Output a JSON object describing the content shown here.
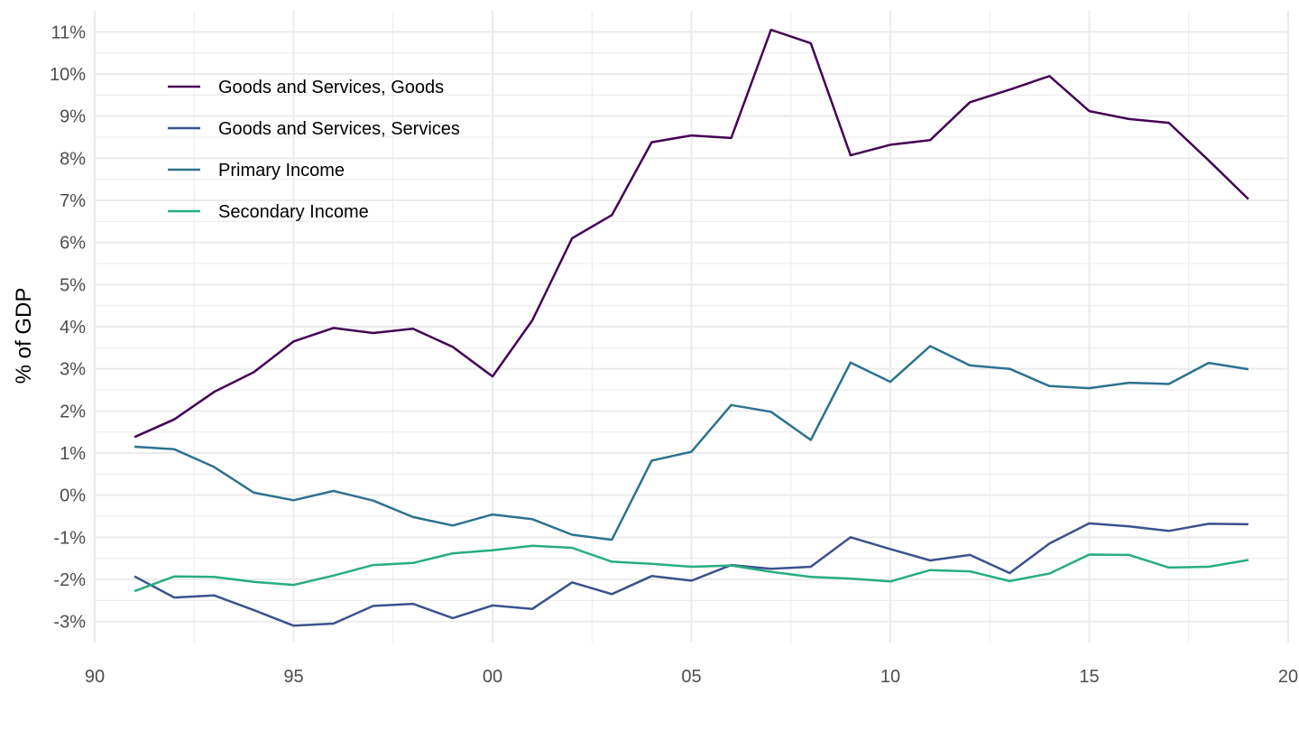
{
  "chart_data": {
    "type": "line",
    "xlabel": "",
    "ylabel": "% of GDP",
    "x_ticks": [
      "90",
      "95",
      "00",
      "05",
      "10",
      "15",
      "20"
    ],
    "x_tick_values": [
      1990,
      1995,
      2000,
      2005,
      2010,
      2015,
      2020
    ],
    "y_ticks": [
      "-3%",
      "-2%",
      "-1%",
      "0%",
      "1%",
      "2%",
      "3%",
      "4%",
      "5%",
      "6%",
      "7%",
      "8%",
      "9%",
      "10%",
      "11%"
    ],
    "y_tick_values": [
      -3,
      -2,
      -1,
      0,
      1,
      2,
      3,
      4,
      5,
      6,
      7,
      8,
      9,
      10,
      11
    ],
    "xlim": [
      1990,
      2020
    ],
    "ylim": [
      -3.5,
      11.5
    ],
    "grid": true,
    "legend_position": "top-left",
    "x": [
      1991,
      1992,
      1993,
      1994,
      1995,
      1996,
      1997,
      1998,
      1999,
      2000,
      2001,
      2002,
      2003,
      2004,
      2005,
      2006,
      2007,
      2008,
      2009,
      2010,
      2011,
      2012,
      2013,
      2014,
      2015,
      2016,
      2017,
      2018,
      2019
    ],
    "series": [
      {
        "name": "Goods and Services, Goods",
        "color": "#440154",
        "values": [
          1.38,
          1.8,
          2.45,
          2.92,
          3.65,
          3.97,
          3.85,
          3.95,
          3.52,
          2.82,
          4.15,
          6.1,
          6.65,
          8.38,
          8.54,
          8.48,
          11.05,
          10.73,
          8.07,
          8.32,
          8.43,
          9.33,
          9.63,
          9.95,
          9.12,
          8.93,
          8.84,
          7.95,
          7.03
        ]
      },
      {
        "name": "Goods and Services, Services",
        "color": "#3b528b",
        "values": [
          -1.93,
          -2.43,
          -2.38,
          -2.73,
          -3.1,
          -3.05,
          -2.63,
          -2.58,
          -2.92,
          -2.62,
          -2.7,
          -2.07,
          -2.35,
          -1.92,
          -2.03,
          -1.66,
          -1.75,
          -1.7,
          -1.0,
          -1.28,
          -1.55,
          -1.42,
          -1.85,
          -1.15,
          -0.67,
          -0.74,
          -0.85,
          -0.68,
          -0.69
        ]
      },
      {
        "name": "Primary Income",
        "color": "#2c728e",
        "values": [
          1.15,
          1.09,
          0.67,
          0.06,
          -0.12,
          0.1,
          -0.13,
          -0.52,
          -0.72,
          -0.46,
          -0.57,
          -0.94,
          -1.06,
          0.82,
          1.03,
          2.14,
          1.98,
          1.31,
          3.15,
          2.69,
          3.54,
          3.08,
          3.0,
          2.59,
          2.54,
          2.67,
          2.64,
          3.14,
          2.99
        ]
      },
      {
        "name": "Secondary Income",
        "color": "#27ad81",
        "values": [
          -2.28,
          -1.93,
          -1.94,
          -2.06,
          -2.13,
          -1.91,
          -1.66,
          -1.61,
          -1.38,
          -1.31,
          -1.2,
          -1.25,
          -1.58,
          -1.63,
          -1.7,
          -1.67,
          -1.82,
          -1.94,
          -1.98,
          -2.05,
          -1.78,
          -1.81,
          -2.04,
          -1.86,
          -1.41,
          -1.42,
          -1.72,
          -1.7,
          -1.54
        ]
      }
    ]
  }
}
